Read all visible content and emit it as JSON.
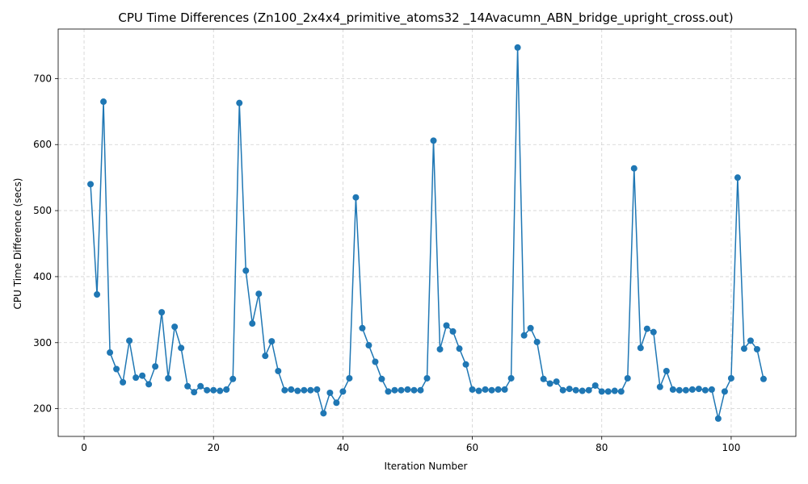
{
  "chart_data": {
    "type": "line",
    "title": "CPU Time Differences (Zn100_2x4x4_primitive_atoms32 _14Avacumn_ABN_bridge_upright_cross.out)",
    "xlabel": "Iteration Number",
    "ylabel": "CPU Time Difference (secs)",
    "xlim": [
      -4,
      110
    ],
    "ylim": [
      158,
      775
    ],
    "xticks": [
      0,
      20,
      40,
      60,
      80,
      100
    ],
    "yticks": [
      200,
      300,
      400,
      500,
      600,
      700
    ],
    "grid": true,
    "marker": "circle",
    "color": "#1f77b4",
    "series": [
      {
        "x": [
          1,
          2,
          3,
          4,
          5,
          6,
          7,
          8,
          9,
          10,
          11,
          12,
          13,
          14,
          15,
          16,
          17,
          18,
          19,
          20,
          21,
          22,
          23,
          24,
          25,
          26,
          27,
          28,
          29,
          30,
          31,
          32,
          33,
          34,
          35,
          36,
          37,
          38,
          39,
          40,
          41,
          42,
          43,
          44,
          45,
          46,
          47,
          48,
          49,
          50,
          51,
          52,
          53,
          54,
          55,
          56,
          57,
          58,
          59,
          60,
          61,
          62,
          63,
          64,
          65,
          66,
          67,
          68,
          69,
          70,
          71,
          72,
          73,
          74,
          75,
          76,
          77,
          78,
          79,
          80,
          81,
          82,
          83,
          84,
          85,
          86,
          87,
          88,
          89,
          90,
          91,
          92,
          93,
          94,
          95,
          96,
          97,
          98,
          99,
          100,
          101,
          102,
          103,
          104,
          105
        ],
        "values": [
          540,
          373,
          665,
          285,
          260,
          240,
          303,
          247,
          250,
          237,
          264,
          346,
          246,
          324,
          292,
          234,
          225,
          234,
          228,
          228,
          227,
          229,
          245,
          663,
          409,
          329,
          374,
          280,
          302,
          257,
          228,
          229,
          227,
          228,
          228,
          229,
          193,
          224,
          209,
          226,
          246,
          520,
          322,
          296,
          271,
          245,
          226,
          228,
          228,
          229,
          228,
          228,
          246,
          606,
          290,
          326,
          317,
          291,
          267,
          229,
          227,
          229,
          228,
          229,
          229,
          246,
          747,
          311,
          322,
          301,
          245,
          238,
          241,
          228,
          230,
          228,
          227,
          228,
          235,
          226,
          226,
          227,
          226,
          246,
          564,
          292,
          321,
          316,
          233,
          257,
          229,
          228,
          228,
          229,
          230,
          228,
          229,
          185,
          226,
          246,
          550,
          291,
          303,
          290,
          245
        ]
      }
    ]
  }
}
